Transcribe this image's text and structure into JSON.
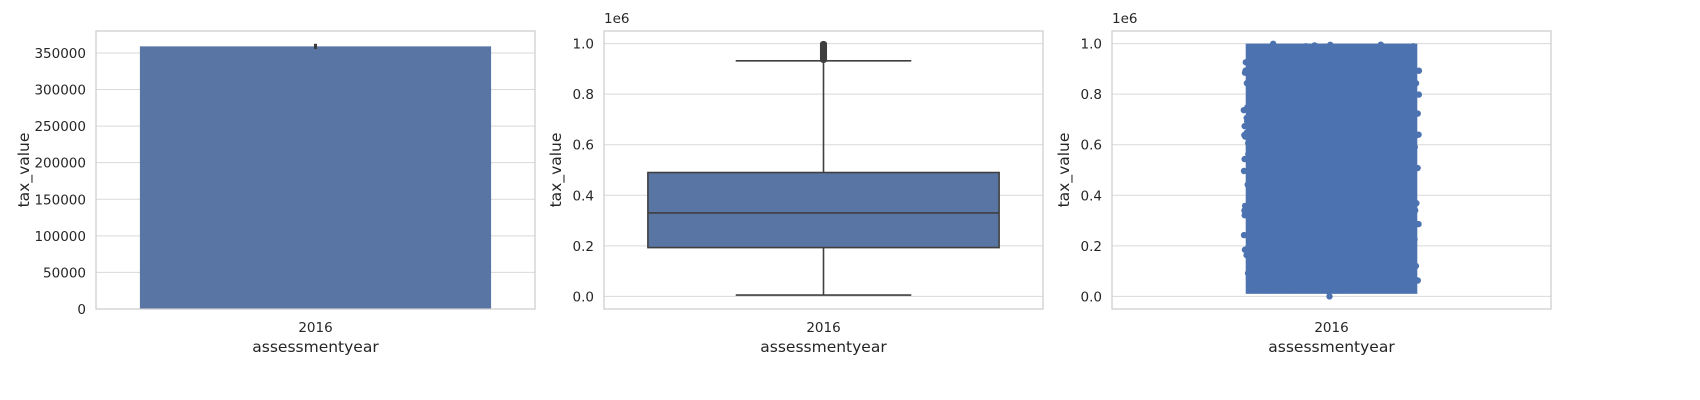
{
  "chart_data": [
    {
      "type": "bar",
      "categories": [
        "2016"
      ],
      "values": [
        359000
      ],
      "error_bar": [
        355500,
        362500
      ],
      "xlabel": "assessmentyear",
      "ylabel": "tax_value",
      "ylim": [
        0,
        380000
      ],
      "yticks": [
        "0",
        "50000",
        "100000",
        "150000",
        "200000",
        "250000",
        "300000",
        "350000"
      ],
      "grid": true,
      "color": "#5975a4"
    },
    {
      "type": "box",
      "categories": [
        "2016"
      ],
      "box": {
        "whisker_low": 0.005,
        "q1": 0.193,
        "median": 0.33,
        "q3": 0.49,
        "whisker_high": 0.932,
        "outliers_from": 0.935,
        "outliers_to": 1.0
      },
      "y_offset": "1e6",
      "xlabel": "assessmentyear",
      "ylabel": "tax_value",
      "ylim": [
        -0.05,
        1.05
      ],
      "yticks": [
        "0.0",
        "0.2",
        "0.4",
        "0.6",
        "0.8",
        "1.0"
      ],
      "grid": true,
      "color": "#5975a4"
    },
    {
      "type": "strip",
      "categories": [
        "2016"
      ],
      "y_range": [
        0.0,
        1.0
      ],
      "y_offset": "1e6",
      "xlabel": "assessmentyear",
      "ylabel": "tax_value",
      "ylim": [
        -0.05,
        1.05
      ],
      "yticks": [
        "0.0",
        "0.2",
        "0.4",
        "0.6",
        "0.8",
        "1.0"
      ],
      "grid": true,
      "color": "#4c72b0"
    }
  ]
}
